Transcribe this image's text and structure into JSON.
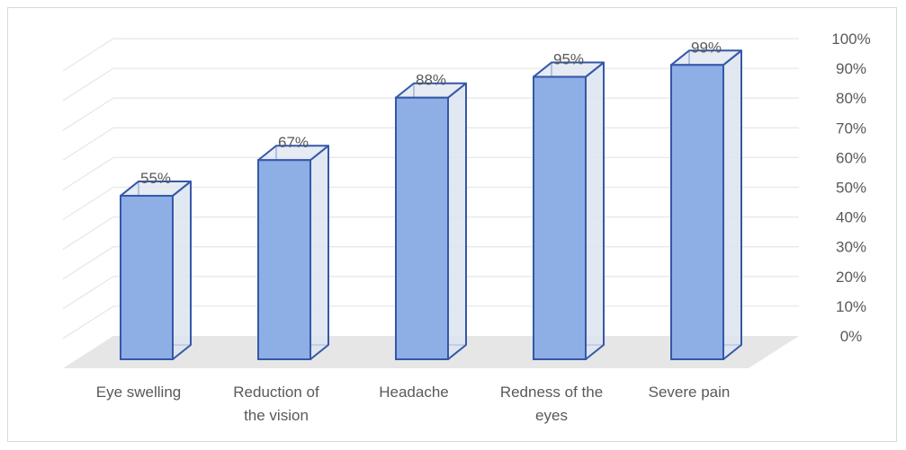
{
  "chart_data": {
    "type": "bar",
    "style": "3d-column",
    "categories": [
      [
        "Eye swelling"
      ],
      [
        "Reduction of",
        "the vision"
      ],
      [
        "Headache"
      ],
      [
        "Redness of the",
        "eyes"
      ],
      [
        "Severe pain"
      ]
    ],
    "values": [
      55,
      67,
      88,
      95,
      99
    ],
    "data_labels": [
      "55%",
      "67%",
      "88%",
      "95%",
      "99%"
    ],
    "y_tick_labels": [
      "0%",
      "10%",
      "20%",
      "30%",
      "40%",
      "50%",
      "60%",
      "70%",
      "80%",
      "90%",
      "100%"
    ],
    "ylim": [
      0,
      100
    ],
    "y_axis_side": "right",
    "grid": true,
    "legend": "none",
    "title": "",
    "xlabel": "",
    "ylabel": "",
    "colors": {
      "bar_front": "#8eaee6",
      "bar_side": "#dde4f0",
      "bar_stroke": "#3458a8",
      "grid": "#e8e8e8",
      "floor": "#e6e6e6",
      "text": "#595959"
    }
  }
}
